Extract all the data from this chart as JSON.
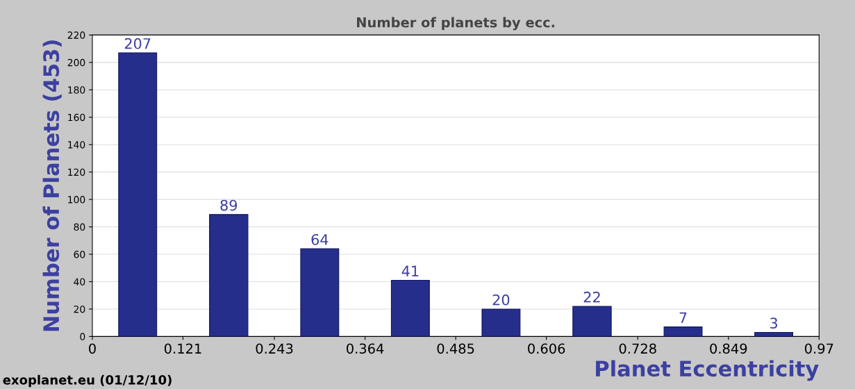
{
  "chart_data": {
    "type": "histogram",
    "title": "Number of planets by ecc.",
    "xlabel": "Planet Eccentricity",
    "ylabel": "Number of Planets (453)",
    "bins": [
      0,
      0.121,
      0.243,
      0.364,
      0.485,
      0.606,
      0.728,
      0.849,
      0.97
    ],
    "values": [
      207,
      89,
      64,
      41,
      20,
      22,
      7,
      3
    ],
    "color": "#262e8c",
    "xlim": [
      0,
      0.97
    ],
    "xticks": [
      0,
      0.121,
      0.243,
      0.364,
      0.485,
      0.606,
      0.728,
      0.849,
      0.97
    ],
    "ylim": [
      0,
      220
    ],
    "yticks": [
      0,
      20,
      40,
      60,
      80,
      100,
      120,
      140,
      160,
      180,
      200,
      220
    ],
    "grid": "y",
    "data_labels": true,
    "annotations": [
      "exoplanet.eu (01/12/10)"
    ]
  }
}
